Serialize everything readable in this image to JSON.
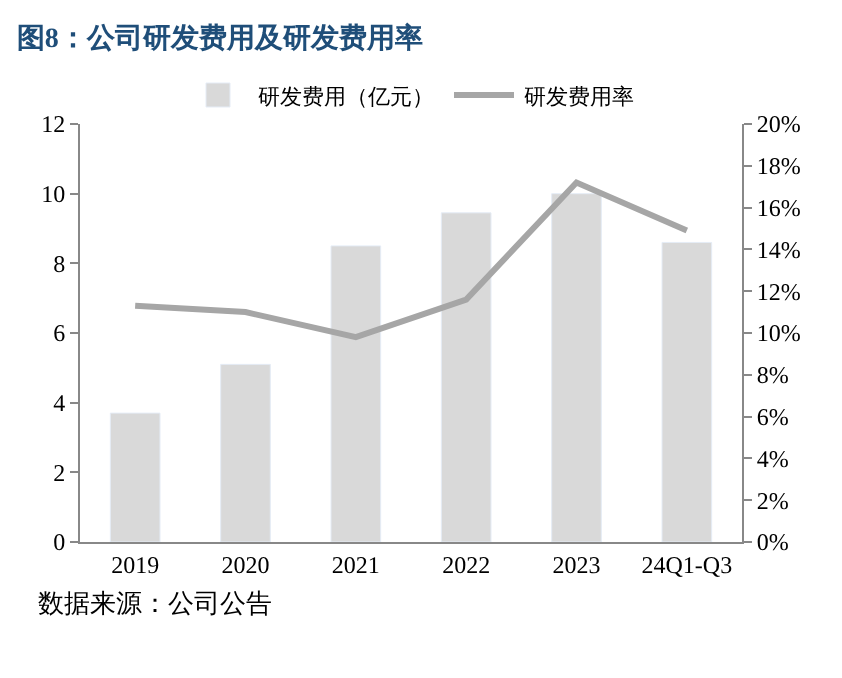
{
  "chart_data": {
    "type": "bar",
    "title": "图8：公司研发费用及研发费用率",
    "categories": [
      "2019",
      "2020",
      "2021",
      "2022",
      "2023",
      "24Q1-Q3"
    ],
    "series": [
      {
        "name": "研发费用（亿元）",
        "color": "#d9d9d9",
        "values": [
          3.7,
          5.1,
          8.5,
          9.45,
          10.0,
          8.6
        ]
      },
      {
        "name": "研发费用率",
        "type": "line",
        "axis": "y2",
        "color": "#a6a6a6",
        "values": [
          11.3,
          11.0,
          9.8,
          11.6,
          17.2,
          14.9
        ]
      }
    ],
    "ylim": [
      0,
      12
    ],
    "yticks": [
      0,
      2,
      4,
      6,
      8,
      10,
      12
    ],
    "y2lim": [
      0,
      20
    ],
    "y2ticks": [
      {
        "value": 0,
        "label": "0%"
      },
      {
        "value": 2,
        "label": "2%"
      },
      {
        "value": 4,
        "label": "4%"
      },
      {
        "value": 6,
        "label": "6%"
      },
      {
        "value": 8,
        "label": "8%"
      },
      {
        "value": 10,
        "label": "10%"
      },
      {
        "value": 12,
        "label": "12%"
      },
      {
        "value": 14,
        "label": "14%"
      },
      {
        "value": 16,
        "label": "16%"
      },
      {
        "value": 18,
        "label": "18%"
      },
      {
        "value": 20,
        "label": "20%"
      }
    ],
    "legend": "top",
    "marker": "none",
    "line_style": "solid",
    "annotations": [
      "数据来源：公司公告"
    ]
  }
}
